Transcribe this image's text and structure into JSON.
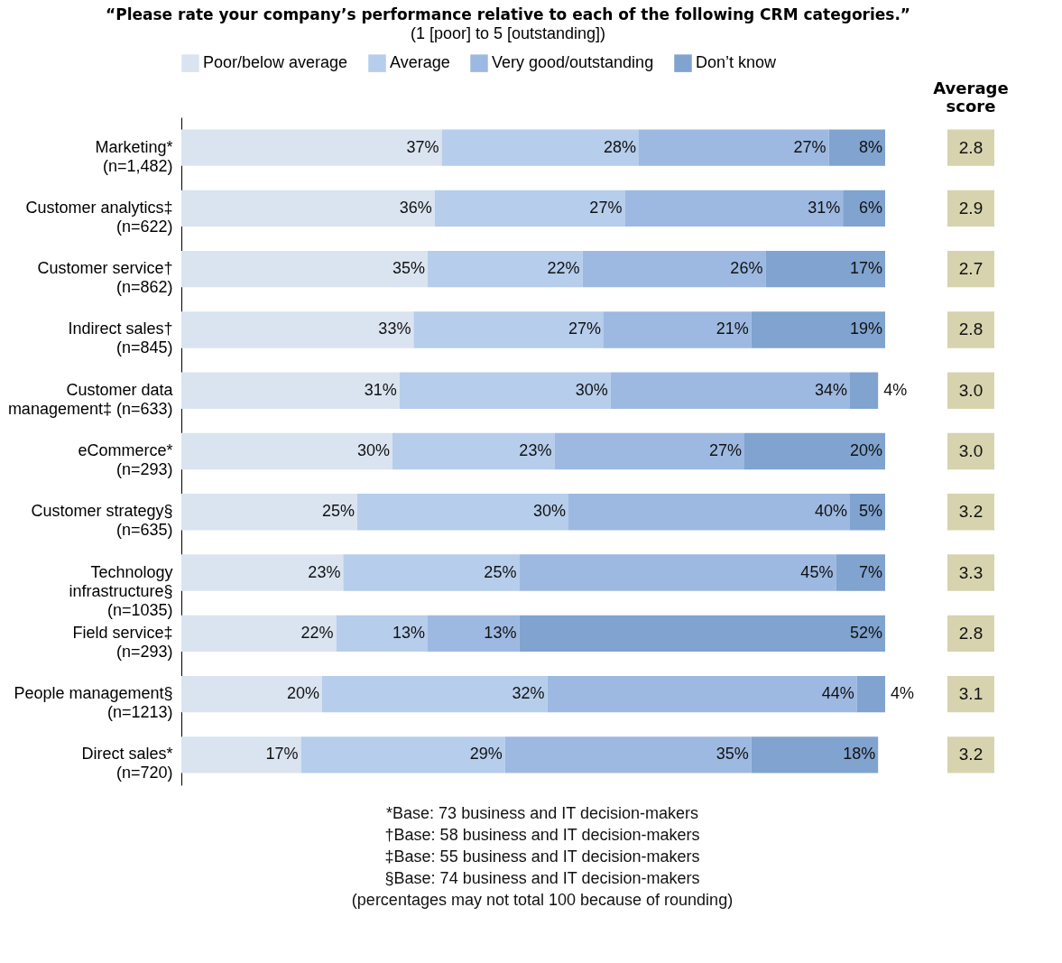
{
  "chart_data": {
    "type": "bar",
    "orientation": "horizontal",
    "stacked": true,
    "title": "“Please rate your company’s performance relative to each of the following CRM categories.”",
    "subtitle": "(1 [poor] to 5 [outstanding])",
    "categories": [
      "Marketing*\n(n=1,482)",
      "Customer analytics‡\n(n=622)",
      "Customer service†\n(n=862)",
      "Indirect sales†\n(n=845)",
      "Customer data\nmanagement‡ (n=633)",
      "eCommerce*\n(n=293)",
      "Customer strategy§\n(n=635)",
      "Technology\ninfrastructure§\n(n=1035)",
      "Field service‡\n(n=293)",
      "People management§\n(n=1213)",
      "Direct sales*\n(n=720)"
    ],
    "series": [
      {
        "name": "Poor/below average",
        "color": "#dae4f0",
        "values": [
          37,
          36,
          35,
          33,
          31,
          30,
          25,
          23,
          22,
          20,
          17
        ],
        "value_labels": [
          "37%",
          "36%",
          "35%",
          "33%",
          "31%",
          "30%",
          "25%",
          "23%",
          "22%",
          "20%",
          "17%"
        ]
      },
      {
        "name": "Average",
        "color": "#b6cdeb",
        "values": [
          28,
          27,
          22,
          27,
          30,
          23,
          30,
          25,
          13,
          32,
          29
        ],
        "value_labels": [
          "28%",
          "27%",
          "22%",
          "27%",
          "30%",
          "23%",
          "30%",
          "25%",
          "13%",
          "32%",
          "29%"
        ]
      },
      {
        "name": "Very good/outstanding",
        "color": "#9db9e1",
        "values": [
          27,
          31,
          26,
          21,
          34,
          27,
          40,
          45,
          13,
          44,
          35
        ],
        "value_labels": [
          "27%",
          "31%",
          "26%",
          "21%",
          "34%",
          "27%",
          "40%",
          "45%",
          "13%",
          "44%",
          "35%"
        ]
      },
      {
        "name": "Don’t know",
        "color": "#80a3cf",
        "values": [
          8,
          6,
          17,
          19,
          4,
          20,
          5,
          7,
          52,
          4,
          18
        ],
        "value_labels": [
          "8%",
          "6%",
          "17%",
          "19%",
          "4%",
          "20%",
          "5%",
          "7%",
          "52%",
          "4%",
          "18%"
        ]
      }
    ],
    "xlim": [
      0,
      100
    ],
    "tick_labels": "y",
    "legend": "top",
    "annotations": [
      "Average score",
      "2.8",
      "2.9",
      "2.7",
      "2.8",
      "3.0",
      "3.0",
      "3.2",
      "3.3",
      "2.8",
      "3.1",
      "3.2",
      "*Base: 73 business and IT decision-makers",
      "†Base: 58 business and IT decision-makers",
      "‡Base: 55 business and IT decision-makers",
      "§Base: 74 business and IT decision-makers",
      "(percentages may not total 100 because of rounding)"
    ]
  }
}
